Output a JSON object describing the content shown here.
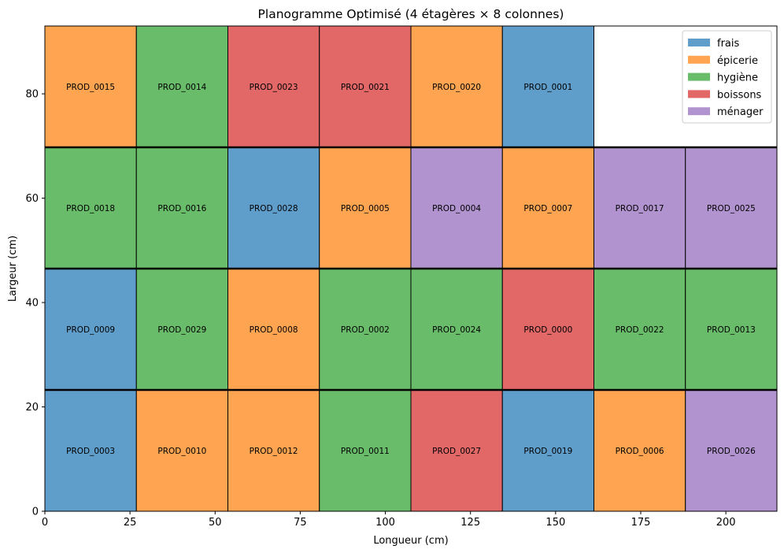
{
  "chart_data": {
    "type": "heatmap",
    "title": "Planogramme Optimisé (4 étagères × 8 colonnes)",
    "xlabel": "Longueur (cm)",
    "ylabel": "Largeur (cm)",
    "xlim": [
      0,
      215
    ],
    "ylim": [
      0,
      93
    ],
    "x_ticks": [
      0,
      25,
      50,
      75,
      100,
      125,
      150,
      175,
      200
    ],
    "y_ticks": [
      0,
      20,
      40,
      60,
      80
    ],
    "legend_position": "top-right",
    "grid": false,
    "num_shelves": 4,
    "num_columns": 8,
    "column_width": 26.875,
    "shelf_height": 23.25,
    "categories": [
      {
        "name": "frais",
        "color": "#5f9ecb"
      },
      {
        "name": "épicerie",
        "color": "#ffa552"
      },
      {
        "name": "hygiène",
        "color": "#69bc69"
      },
      {
        "name": "boissons",
        "color": "#e26868"
      },
      {
        "name": "ménager",
        "color": "#b194cf"
      }
    ],
    "shelves": [
      [
        {
          "product": "PROD_0003",
          "category": "frais"
        },
        {
          "product": "PROD_0010",
          "category": "épicerie"
        },
        {
          "product": "PROD_0012",
          "category": "épicerie"
        },
        {
          "product": "PROD_0011",
          "category": "hygiène"
        },
        {
          "product": "PROD_0027",
          "category": "boissons"
        },
        {
          "product": "PROD_0019",
          "category": "frais"
        },
        {
          "product": "PROD_0006",
          "category": "épicerie"
        },
        {
          "product": "PROD_0026",
          "category": "ménager"
        }
      ],
      [
        {
          "product": "PROD_0009",
          "category": "frais"
        },
        {
          "product": "PROD_0029",
          "category": "hygiène"
        },
        {
          "product": "PROD_0008",
          "category": "épicerie"
        },
        {
          "product": "PROD_0002",
          "category": "hygiène"
        },
        {
          "product": "PROD_0024",
          "category": "hygiène"
        },
        {
          "product": "PROD_0000",
          "category": "boissons"
        },
        {
          "product": "PROD_0022",
          "category": "hygiène"
        },
        {
          "product": "PROD_0013",
          "category": "hygiène"
        }
      ],
      [
        {
          "product": "PROD_0018",
          "category": "hygiène"
        },
        {
          "product": "PROD_0016",
          "category": "hygiène"
        },
        {
          "product": "PROD_0028",
          "category": "frais"
        },
        {
          "product": "PROD_0005",
          "category": "épicerie"
        },
        {
          "product": "PROD_0004",
          "category": "ménager"
        },
        {
          "product": "PROD_0007",
          "category": "épicerie"
        },
        {
          "product": "PROD_0017",
          "category": "ménager"
        },
        {
          "product": "PROD_0025",
          "category": "ménager"
        }
      ],
      [
        {
          "product": "PROD_0015",
          "category": "épicerie"
        },
        {
          "product": "PROD_0014",
          "category": "hygiène"
        },
        {
          "product": "PROD_0023",
          "category": "boissons"
        },
        {
          "product": "PROD_0021",
          "category": "boissons"
        },
        {
          "product": "PROD_0020",
          "category": "épicerie"
        },
        {
          "product": "PROD_0001",
          "category": "frais"
        },
        null,
        null
      ]
    ]
  }
}
